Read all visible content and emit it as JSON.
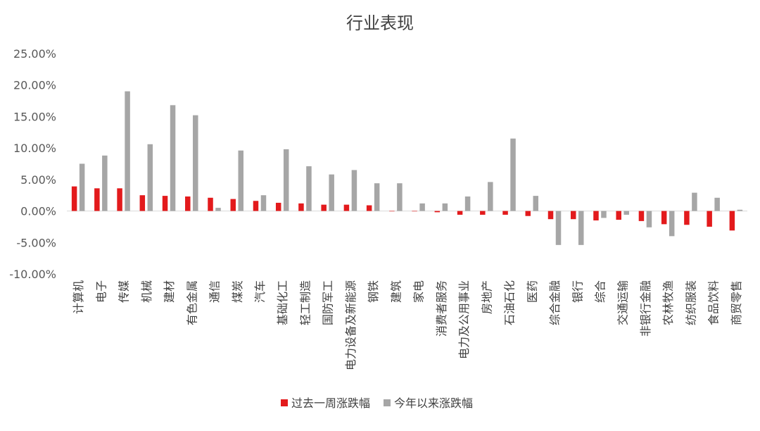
{
  "chart_data": {
    "type": "bar",
    "title": "行业表现",
    "xlabel": "",
    "ylabel": "",
    "ylim": [
      -0.1,
      0.25
    ],
    "y_ticks": [
      "25.00%",
      "20.00%",
      "15.00%",
      "10.00%",
      "5.00%",
      "0.00%",
      "-5.00%",
      "-10.00%"
    ],
    "y_tick_values": [
      0.25,
      0.2,
      0.15,
      0.1,
      0.05,
      0.0,
      -0.05,
      -0.1
    ],
    "categories": [
      "计算机",
      "电子",
      "传媒",
      "机械",
      "建材",
      "有色金属",
      "通信",
      "煤炭",
      "汽车",
      "基础化工",
      "轻工制造",
      "国防军工",
      "电力设备及新能源",
      "钢铁",
      "建筑",
      "家电",
      "消费者服务",
      "电力及公用事业",
      "房地产",
      "石油石化",
      "医药",
      "综合金融",
      "银行",
      "综合",
      "交通运输",
      "非银行金融",
      "农林牧渔",
      "纺织服装",
      "食品饮料",
      "商贸零售"
    ],
    "series": [
      {
        "name": "过去一周涨跌幅",
        "color": "#e31a1c",
        "values": [
          0.039,
          0.036,
          0.036,
          0.025,
          0.024,
          0.023,
          0.021,
          0.019,
          0.016,
          0.013,
          0.012,
          0.01,
          0.01,
          0.009,
          0.0,
          0.0,
          -0.002,
          -0.006,
          -0.006,
          -0.006,
          -0.008,
          -0.013,
          -0.013,
          -0.015,
          -0.014,
          -0.016,
          -0.021,
          -0.022,
          -0.025,
          -0.031
        ]
      },
      {
        "name": "今年以来涨跌幅",
        "color": "#a6a6a6",
        "values": [
          0.075,
          0.088,
          0.19,
          0.106,
          0.168,
          0.152,
          0.005,
          0.096,
          0.025,
          0.098,
          0.071,
          0.058,
          0.065,
          0.044,
          0.044,
          0.012,
          0.012,
          0.023,
          0.046,
          0.115,
          0.024,
          -0.054,
          -0.054,
          -0.011,
          -0.006,
          -0.026,
          -0.04,
          0.029,
          0.021,
          0.002
        ]
      }
    ],
    "legend_position": "bottom-center",
    "grid": false
  }
}
